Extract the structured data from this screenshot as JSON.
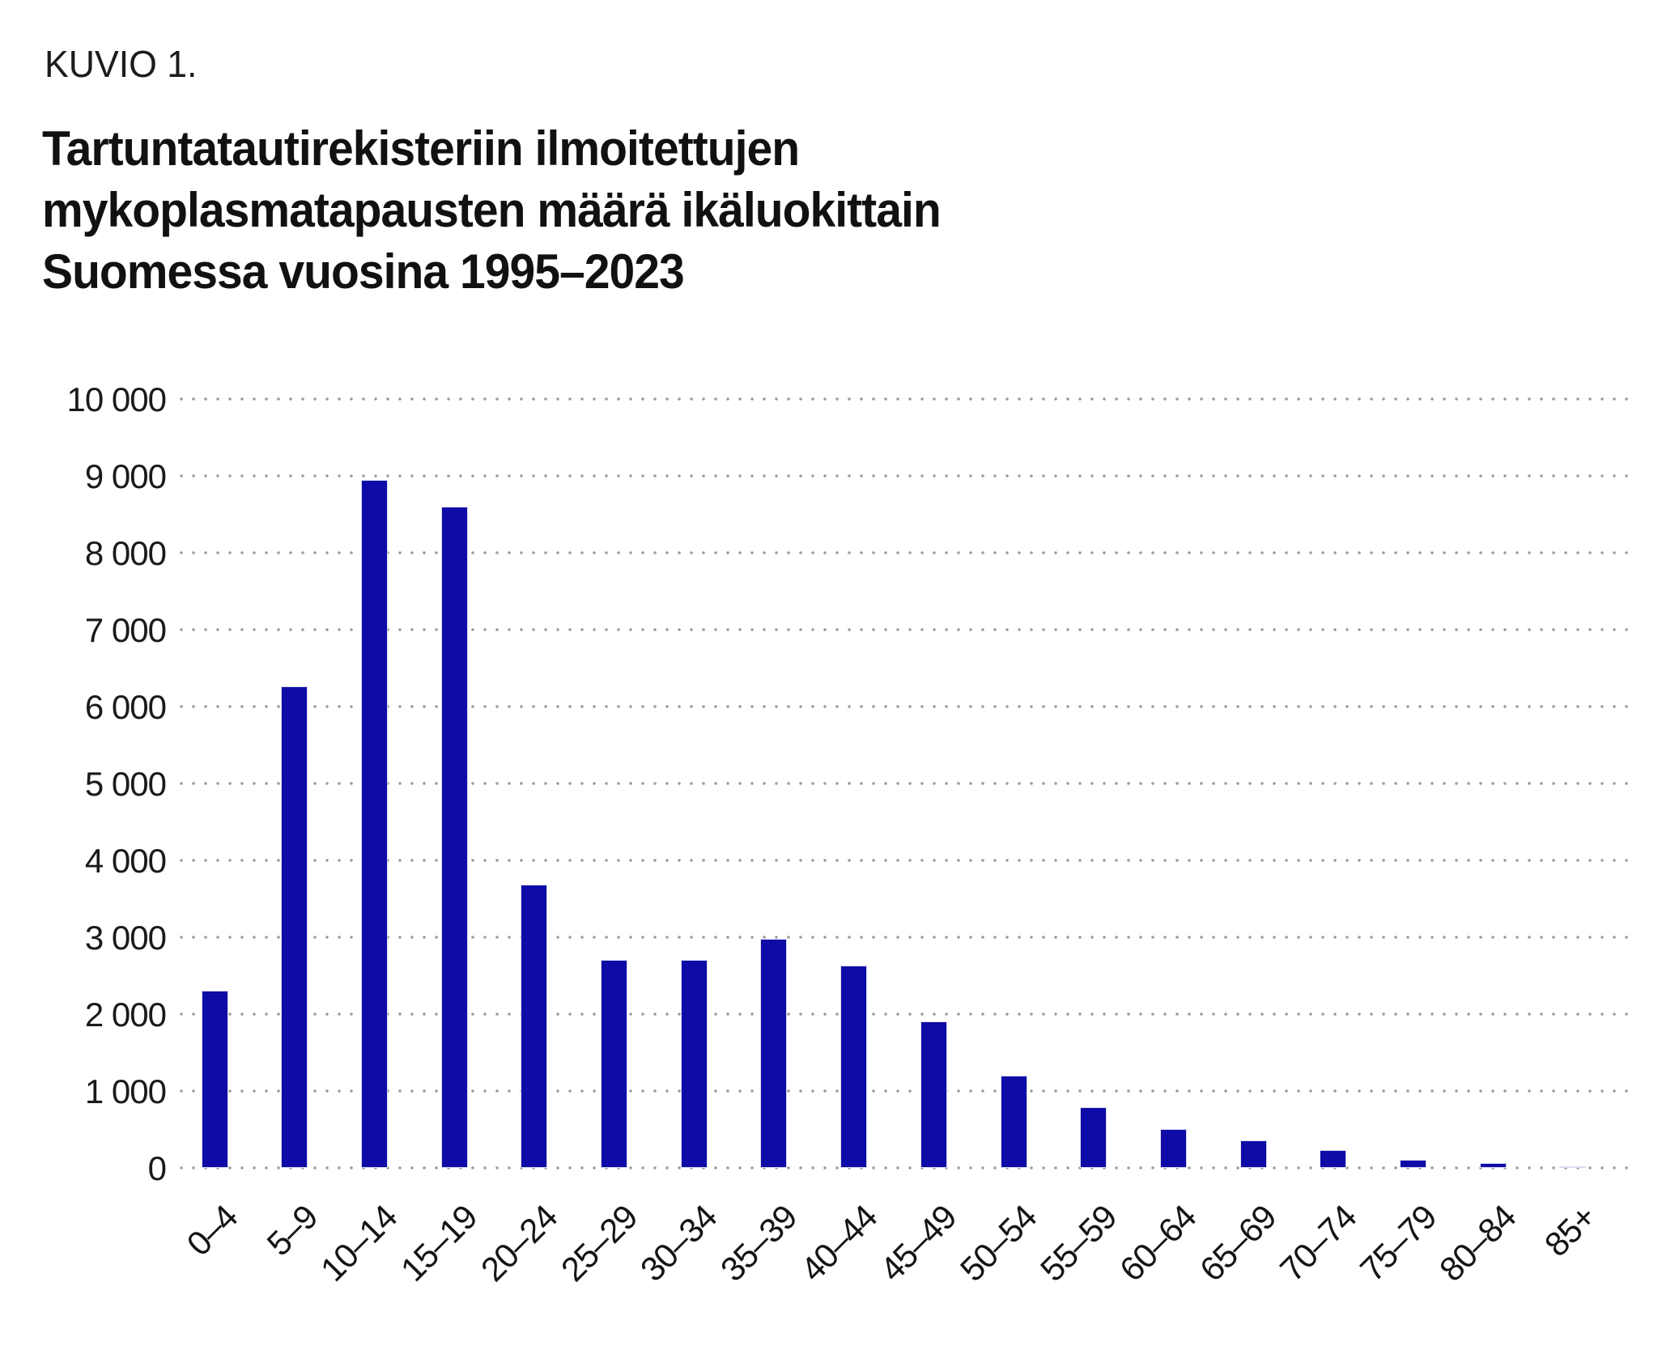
{
  "header": {
    "kicker": "KUVIO 1.",
    "title": "Tartuntatautirekisteriin ilmoitettujen\nmykoplasmatapausten määrä ikäluokittain\nSuomessa vuosina 1995–2023"
  },
  "chart_data": {
    "type": "bar",
    "title": "Tartuntatautirekisteriin ilmoitettujen mykoplasmatapausten määrä ikäluokittain Suomessa vuosina 1995–2023",
    "xlabel": "",
    "ylabel": "",
    "categories": [
      "0–4",
      "5–9",
      "10–14",
      "15–19",
      "20–24",
      "25–29",
      "30–34",
      "35–39",
      "40–44",
      "45–49",
      "50–54",
      "55–59",
      "60–64",
      "65–69",
      "70–74",
      "75–79",
      "80–84",
      "85+"
    ],
    "values": [
      2300,
      6260,
      8950,
      8600,
      3680,
      2700,
      2700,
      2980,
      2630,
      1900,
      1200,
      790,
      510,
      360,
      230,
      110,
      60,
      25
    ],
    "ylim": [
      0,
      10000
    ],
    "ytick_values": [
      0,
      1000,
      2000,
      3000,
      4000,
      5000,
      6000,
      7000,
      8000,
      9000,
      10000
    ],
    "ytick_labels": [
      "0",
      "1 000",
      "2 000",
      "3 000",
      "4 000",
      "5 000",
      "6 000",
      "7 000",
      "8 000",
      "9 000",
      "10 000"
    ],
    "grid": "horizontal-dotted",
    "legend": "none",
    "bar_color": "#0E0BA6",
    "bar_edge_color": "#dcdcf2",
    "gridline_color": "#9b9b9b",
    "text_color": "#1a1a1a"
  }
}
